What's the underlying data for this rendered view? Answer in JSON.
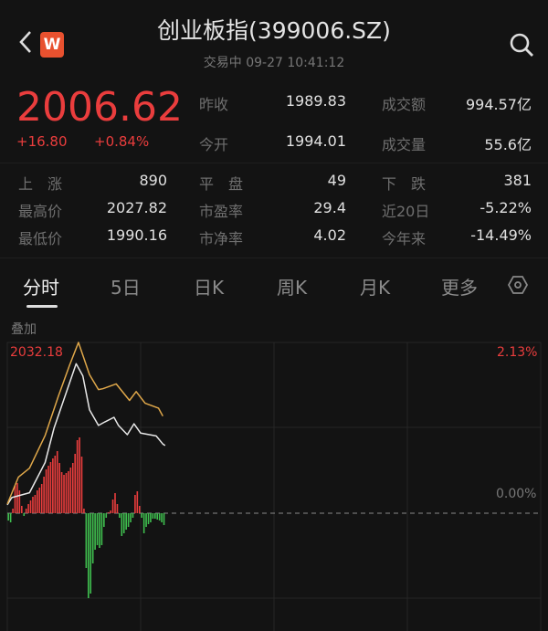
{
  "header": {
    "title": "创业板指(399006.SZ)",
    "status": "交易中 09-27 10:41:12",
    "logo_letter": "W",
    "back_icon": "chevron-left-icon",
    "search_icon": "search-icon"
  },
  "quote": {
    "price": "2006.62",
    "change": "+16.80",
    "change_pct": "+0.84%",
    "color_up": "#ea3d3d",
    "color_down": "#3fbf4f"
  },
  "stats": [
    [
      {
        "label": "昨收",
        "value": "1989.83"
      },
      {
        "label": "成交额",
        "value": "994.57亿"
      }
    ],
    [
      {
        "label": "今开",
        "value": "1994.01"
      },
      {
        "label": "成交量",
        "value": "55.6亿"
      }
    ]
  ],
  "stats2": [
    [
      {
        "label": "上　涨",
        "value": "890"
      },
      {
        "label": "平　盘",
        "value": "49"
      },
      {
        "label": "下　跌",
        "value": "381"
      }
    ],
    [
      {
        "label": "最高价",
        "value": "2027.82"
      },
      {
        "label": "市盈率",
        "value": "29.4"
      },
      {
        "label": "近20日",
        "value": "-5.22%"
      }
    ],
    [
      {
        "label": "最低价",
        "value": "1990.16"
      },
      {
        "label": "市净率",
        "value": "4.02"
      },
      {
        "label": "今年来",
        "value": "-14.49%"
      }
    ]
  ],
  "tabs": [
    {
      "label": "分时",
      "active": true
    },
    {
      "label": "5日"
    },
    {
      "label": "日K"
    },
    {
      "label": "周K"
    },
    {
      "label": "月K"
    },
    {
      "label": "更多"
    }
  ],
  "settings_icon": "hexagon-settings-icon",
  "overlay_label": "叠加",
  "chart_data": {
    "type": "line",
    "ylim_price": [
      1989.83,
      2032.18
    ],
    "y_top_label": "2032.18",
    "y_top_pct": "2.13%",
    "y_zero_pct": "0.00%",
    "x_range": [
      "09:30",
      "15:00"
    ],
    "grid": true,
    "series": [
      {
        "color": "#e8e8e8",
        "points": [
          [
            "09:30",
            1991.9
          ],
          [
            "09:32",
            1993.7
          ],
          [
            "09:40",
            1994.9
          ],
          [
            "09:47",
            2002.4
          ],
          [
            "09:51",
            2010.9
          ],
          [
            "10:01",
            2026.9
          ],
          [
            "10:04",
            2023.9
          ],
          [
            "10:07",
            2015.5
          ],
          [
            "10:11",
            2011.6
          ],
          [
            "10:14",
            2012.5
          ],
          [
            "10:18",
            2013.6
          ],
          [
            "10:20",
            2011.6
          ],
          [
            "10:24",
            2009.3
          ],
          [
            "10:27",
            2012.0
          ],
          [
            "10:30",
            2009.7
          ],
          [
            "10:37",
            2009.0
          ],
          [
            "10:40",
            2007.0
          ],
          [
            "10:41",
            2006.62
          ]
        ]
      },
      {
        "color": "#e0a84a",
        "points": [
          [
            "09:30",
            1992.1
          ],
          [
            "09:35",
            1998.8
          ],
          [
            "09:40",
            2001.0
          ],
          [
            "09:47",
            2009.1
          ],
          [
            "09:53",
            2018.9
          ],
          [
            "09:58",
            2026.5
          ],
          [
            "10:02",
            2032.18
          ],
          [
            "10:07",
            2024.2
          ],
          [
            "10:11",
            2020.5
          ],
          [
            "10:13",
            2020.7
          ],
          [
            "10:19",
            2021.9
          ],
          [
            "10:25",
            2017.8
          ],
          [
            "10:28",
            2020.0
          ],
          [
            "10:32",
            2017.1
          ],
          [
            "10:38",
            2015.9
          ],
          [
            "10:40",
            2013.9
          ]
        ]
      }
    ],
    "bars": [
      -8,
      -10,
      5,
      30,
      33,
      25,
      8,
      -3,
      5,
      10,
      14,
      18,
      20,
      25,
      28,
      32,
      40,
      48,
      52,
      56,
      60,
      63,
      68,
      55,
      45,
      42,
      44,
      46,
      50,
      55,
      65,
      80,
      83,
      62,
      5,
      -60,
      -93,
      -88,
      -55,
      -40,
      -35,
      -38,
      -35,
      -15,
      -5,
      1,
      3,
      15,
      22,
      10,
      -5,
      -25,
      -22,
      -18,
      -15,
      -10,
      -5,
      20,
      24,
      8,
      -5,
      -22,
      -15,
      -12,
      -10,
      -6,
      -6,
      -7,
      -8,
      -10,
      -13
    ]
  }
}
